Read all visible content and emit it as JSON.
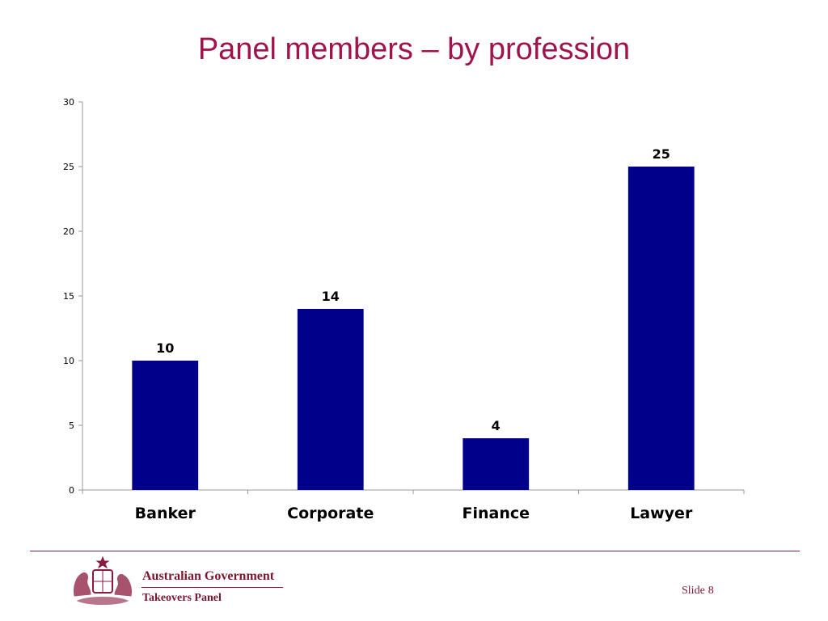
{
  "slide": {
    "title": "Panel members – by profession",
    "organisation": "Australian Government",
    "department": "Takeovers Panel",
    "slide_label": "Slide",
    "slide_number": "8"
  },
  "colors": {
    "title": "#a0144e",
    "bar": "#00008b",
    "footer": "#8b1a3e"
  },
  "chart_data": {
    "type": "bar",
    "title": "",
    "xlabel": "",
    "ylabel": "",
    "categories": [
      "Banker",
      "Corporate",
      "Finance",
      "Lawyer"
    ],
    "values": [
      10,
      14,
      4,
      25
    ],
    "data_labels": [
      "10",
      "14",
      "4",
      "25"
    ],
    "ylim": [
      0,
      30
    ],
    "yticks": [
      0,
      5,
      10,
      15,
      20,
      25,
      30
    ],
    "grid": false,
    "legend": false
  }
}
